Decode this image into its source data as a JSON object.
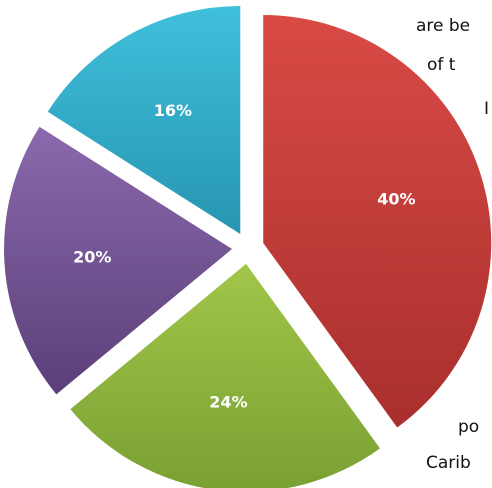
{
  "background_text": {
    "line_1": "are be",
    "line_2": "of t",
    "line_3": "I",
    "line_4": "po",
    "line_5": "Carib"
  },
  "chart_data": {
    "type": "pie",
    "values": [
      40,
      24,
      20,
      16
    ],
    "labels": [
      "40%",
      "24%",
      "20%",
      "16%"
    ],
    "colors": [
      {
        "light": "#d94a45",
        "dark": "#a82f2d"
      },
      {
        "light": "#a2c64a",
        "dark": "#79a032"
      },
      {
        "light": "#8b69ad",
        "dark": "#5b3f79"
      },
      {
        "light": "#3fc0dc",
        "dark": "#2795b0"
      }
    ],
    "exploded": true,
    "legend": "none"
  }
}
